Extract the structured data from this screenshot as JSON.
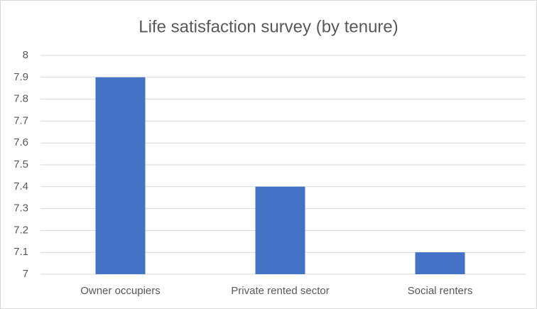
{
  "chart_data": {
    "type": "bar",
    "title": "Life satisfaction survey (by tenure)",
    "categories": [
      "Owner occupiers",
      "Private rented sector",
      "Social renters"
    ],
    "values": [
      7.9,
      7.4,
      7.1
    ],
    "color": "#4472c4",
    "ylim": [
      7,
      8
    ],
    "yticks": [
      7,
      7.1,
      7.2,
      7.3,
      7.4,
      7.5,
      7.6,
      7.7,
      7.8,
      7.9,
      8
    ],
    "grid": true
  }
}
